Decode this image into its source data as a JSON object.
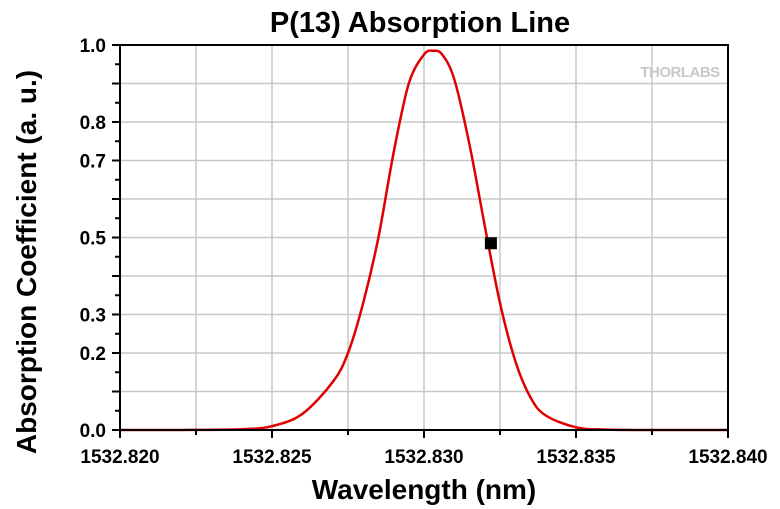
{
  "chart_data": {
    "type": "line",
    "title": "P(13) Absorption Line",
    "xlabel": "Wavelength (nm)",
    "ylabel": "Absorption Coefficient (a. u.)",
    "xlim": [
      1532.82,
      1532.84
    ],
    "ylim": [
      0.0,
      1.0
    ],
    "x_ticks": [
      "1532.820",
      "1532.825",
      "1532.830",
      "1532.835",
      "1532.840"
    ],
    "x_tick_values": [
      1532.82,
      1532.825,
      1532.83,
      1532.835,
      1532.84
    ],
    "y_ticks": [
      "0.0",
      "0.2",
      "0.3",
      "0.5",
      "0.7",
      "0.8",
      "1.0"
    ],
    "y_tick_values": [
      0.0,
      0.2,
      0.3,
      0.5,
      0.7,
      0.8,
      1.0
    ],
    "grid": true,
    "series": [
      {
        "color": "#e00000",
        "x": [
          1532.82,
          1532.822,
          1532.824,
          1532.825,
          1532.826,
          1532.827,
          1532.8275,
          1532.828,
          1532.8285,
          1532.829,
          1532.8295,
          1532.83,
          1532.8303,
          1532.8306,
          1532.831,
          1532.8315,
          1532.832,
          1532.8325,
          1532.833,
          1532.8335,
          1532.834,
          1532.835,
          1532.836,
          1532.838,
          1532.84
        ],
        "y": [
          0.0,
          0.0,
          0.002,
          0.01,
          0.042,
          0.125,
          0.2,
          0.33,
          0.5,
          0.72,
          0.9,
          0.975,
          0.985,
          0.975,
          0.91,
          0.74,
          0.53,
          0.33,
          0.18,
          0.085,
          0.038,
          0.007,
          0.001,
          0.0,
          0.0
        ]
      }
    ],
    "markers": [
      {
        "x": 1532.8322,
        "y": 0.485,
        "color": "#000000"
      }
    ]
  },
  "logo": "THORLABS"
}
